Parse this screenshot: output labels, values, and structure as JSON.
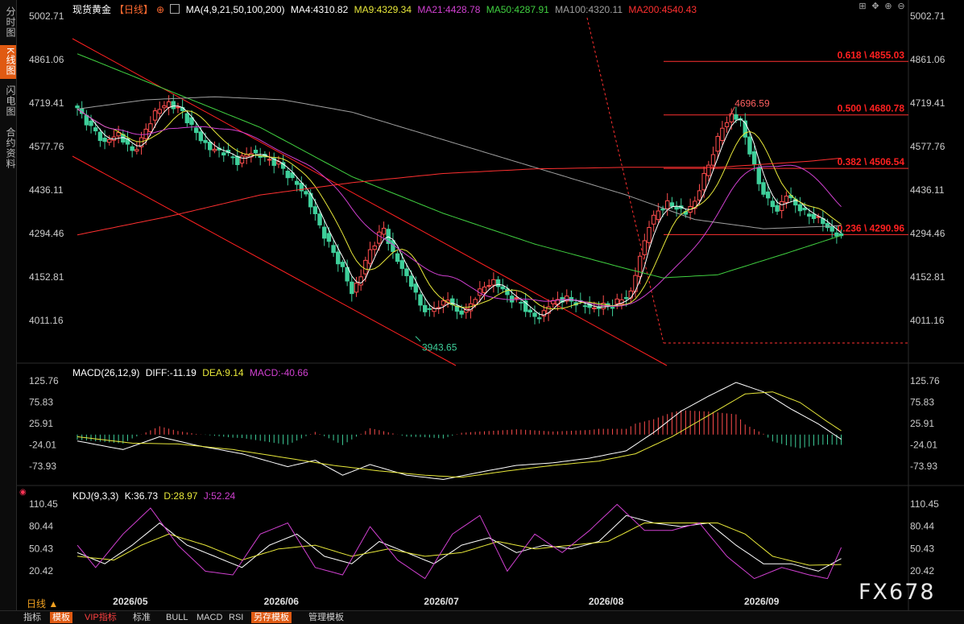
{
  "sidebar": {
    "tabs": [
      {
        "label": "分时图",
        "active": false
      },
      {
        "label": "K线图",
        "active": true
      },
      {
        "label": "闪电图",
        "active": false
      },
      {
        "label": "合约资料",
        "active": false
      }
    ]
  },
  "header": {
    "symbol": "现货黄金",
    "period_tag": "【日线】",
    "add_icon": "⊕",
    "ma_icon": "grid-icon",
    "ma_params": "MA(4,9,21,50,100,200)",
    "ma4": "MA4:4310.82",
    "ma9": "MA9:4329.34",
    "ma21": "MA21:4428.78",
    "ma50": "MA50:4287.91",
    "ma100": "MA100:4320.11",
    "ma200": "MA200:4540.43"
  },
  "macd_legend": {
    "name": "MACD(26,12,9)",
    "diff": "DIFF:-11.19",
    "dea": "DEA:9.14",
    "macd": "MACD:-40.66"
  },
  "kdj_legend": {
    "name": "KDJ(9,3,3)",
    "k": "K:36.73",
    "d": "D:28.97",
    "j": "J:52.24"
  },
  "period_label": "日线 ▲",
  "watermark": "FX678",
  "toolbar": {
    "items": [
      "指标",
      "模板",
      "VIP指标",
      "标准",
      "BULL",
      "MACD",
      "RSI",
      "另存模板",
      "管理模板"
    ]
  },
  "colors": {
    "up": "#ff4d4d",
    "down": "#3ecf9a",
    "ma4": "#ffffff",
    "ma9": "#e8e83a",
    "ma21": "#d040d0",
    "ma50": "#40d040",
    "ma100": "#a0a0a0",
    "ma200": "#ff3030",
    "axis_text": "#cccccc",
    "fib": "#ff3030"
  },
  "chart_data": {
    "type": "candlestick",
    "price_axis": {
      "ticks": [
        "5002.71",
        "4861.06",
        "4719.41",
        "4577.76",
        "4436.11",
        "4294.46",
        "4152.81",
        "4011.16"
      ],
      "range": [
        3950,
        5002.71
      ]
    },
    "macd_axis": {
      "ticks": [
        "125.76",
        "75.83",
        "25.91",
        "-24.01",
        "-73.93"
      ]
    },
    "kdj_axis": {
      "ticks": [
        "110.45",
        "80.44",
        "50.43",
        "20.42"
      ]
    },
    "x_labels": [
      "2026/05",
      "2026/06",
      "2026/07",
      "2026/08",
      "2026/09"
    ],
    "annotations": {
      "high": "4696.59",
      "low": "3943.65"
    },
    "fib_levels": [
      {
        "label": "0.618 \\ 4855.03",
        "value": 4855.03
      },
      {
        "label": "0.500 \\ 4680.78",
        "value": 4680.78
      },
      {
        "label": "0.382 \\ 4506.54",
        "value": 4506.54
      },
      {
        "label": "0.236 \\ 4290.96",
        "value": 4290.96
      }
    ],
    "close_anchors": [
      [
        0,
        4700
      ],
      [
        3,
        4640
      ],
      [
        6,
        4590
      ],
      [
        9,
        4620
      ],
      [
        12,
        4560
      ],
      [
        14,
        4600
      ],
      [
        17,
        4690
      ],
      [
        20,
        4720
      ],
      [
        23,
        4690
      ],
      [
        26,
        4620
      ],
      [
        29,
        4570
      ],
      [
        32,
        4560
      ],
      [
        35,
        4530
      ],
      [
        38,
        4560
      ],
      [
        41,
        4540
      ],
      [
        44,
        4520
      ],
      [
        47,
        4470
      ],
      [
        50,
        4420
      ],
      [
        53,
        4320
      ],
      [
        56,
        4230
      ],
      [
        58,
        4180
      ],
      [
        60,
        4100
      ],
      [
        62,
        4160
      ],
      [
        64,
        4240
      ],
      [
        66,
        4290
      ],
      [
        67,
        4310
      ],
      [
        69,
        4230
      ],
      [
        71,
        4180
      ],
      [
        73,
        4130
      ],
      [
        75,
        4060
      ],
      [
        77,
        4040
      ],
      [
        79,
        4060
      ],
      [
        81,
        4080
      ],
      [
        83,
        4040
      ],
      [
        85,
        4040
      ],
      [
        87,
        4090
      ],
      [
        89,
        4120
      ],
      [
        91,
        4140
      ],
      [
        93,
        4110
      ],
      [
        95,
        4080
      ],
      [
        97,
        4070
      ],
      [
        99,
        4030
      ],
      [
        101,
        4020
      ],
      [
        103,
        4060
      ],
      [
        105,
        4080
      ],
      [
        107,
        4080
      ],
      [
        109,
        4070
      ],
      [
        111,
        4060
      ],
      [
        113,
        4050
      ],
      [
        115,
        4060
      ],
      [
        117,
        4060
      ],
      [
        119,
        4080
      ],
      [
        121,
        4100
      ],
      [
        123,
        4220
      ],
      [
        125,
        4320
      ],
      [
        127,
        4370
      ],
      [
        129,
        4390
      ],
      [
        131,
        4380
      ],
      [
        133,
        4360
      ],
      [
        135,
        4400
      ],
      [
        137,
        4480
      ],
      [
        139,
        4560
      ],
      [
        141,
        4640
      ],
      [
        143,
        4680
      ],
      [
        145,
        4660
      ],
      [
        147,
        4560
      ],
      [
        149,
        4460
      ],
      [
        151,
        4400
      ],
      [
        153,
        4370
      ],
      [
        155,
        4420
      ],
      [
        157,
        4390
      ],
      [
        159,
        4360
      ],
      [
        161,
        4350
      ],
      [
        163,
        4330
      ],
      [
        165,
        4300
      ],
      [
        167,
        4280
      ]
    ],
    "ma50_anchors": [
      [
        0,
        4880
      ],
      [
        20,
        4760
      ],
      [
        40,
        4640
      ],
      [
        60,
        4480
      ],
      [
        80,
        4360
      ],
      [
        100,
        4260
      ],
      [
        120,
        4180
      ],
      [
        128,
        4150
      ],
      [
        140,
        4160
      ],
      [
        155,
        4230
      ],
      [
        167,
        4288
      ]
    ],
    "ma100_anchors": [
      [
        0,
        4700
      ],
      [
        15,
        4730
      ],
      [
        30,
        4740
      ],
      [
        45,
        4730
      ],
      [
        60,
        4690
      ],
      [
        80,
        4600
      ],
      [
        100,
        4510
      ],
      [
        120,
        4420
      ],
      [
        135,
        4340
      ],
      [
        150,
        4310
      ],
      [
        167,
        4320
      ]
    ],
    "ma200_anchors": [
      [
        0,
        4290
      ],
      [
        20,
        4350
      ],
      [
        40,
        4420
      ],
      [
        60,
        4460
      ],
      [
        80,
        4490
      ],
      [
        100,
        4505
      ],
      [
        120,
        4510
      ],
      [
        140,
        4510
      ],
      [
        160,
        4530
      ],
      [
        167,
        4540
      ]
    ],
    "macd_anchors": [
      [
        0,
        -15
      ],
      [
        10,
        -35
      ],
      [
        18,
        -5
      ],
      [
        26,
        -25
      ],
      [
        36,
        -45
      ],
      [
        46,
        -75
      ],
      [
        52,
        -60
      ],
      [
        58,
        -95
      ],
      [
        64,
        -70
      ],
      [
        72,
        -95
      ],
      [
        80,
        -105
      ],
      [
        88,
        -88
      ],
      [
        96,
        -72
      ],
      [
        104,
        -66
      ],
      [
        112,
        -55
      ],
      [
        120,
        -38
      ],
      [
        126,
        5
      ],
      [
        132,
        55
      ],
      [
        138,
        90
      ],
      [
        144,
        122
      ],
      [
        150,
        100
      ],
      [
        156,
        60
      ],
      [
        162,
        25
      ],
      [
        167,
        -11
      ]
    ],
    "dea_anchors": [
      [
        0,
        -5
      ],
      [
        12,
        -20
      ],
      [
        22,
        -22
      ],
      [
        34,
        -35
      ],
      [
        46,
        -55
      ],
      [
        56,
        -72
      ],
      [
        66,
        -85
      ],
      [
        76,
        -95
      ],
      [
        84,
        -100
      ],
      [
        94,
        -85
      ],
      [
        104,
        -72
      ],
      [
        114,
        -62
      ],
      [
        122,
        -45
      ],
      [
        130,
        -5
      ],
      [
        138,
        45
      ],
      [
        146,
        95
      ],
      [
        152,
        100
      ],
      [
        158,
        75
      ],
      [
        164,
        30
      ],
      [
        167,
        9
      ]
    ],
    "kdj_k_anchors": [
      [
        0,
        45
      ],
      [
        6,
        30
      ],
      [
        12,
        55
      ],
      [
        18,
        85
      ],
      [
        24,
        55
      ],
      [
        30,
        40
      ],
      [
        36,
        25
      ],
      [
        42,
        55
      ],
      [
        48,
        70
      ],
      [
        54,
        40
      ],
      [
        60,
        30
      ],
      [
        66,
        60
      ],
      [
        72,
        45
      ],
      [
        78,
        30
      ],
      [
        84,
        55
      ],
      [
        90,
        65
      ],
      [
        96,
        45
      ],
      [
        102,
        55
      ],
      [
        108,
        50
      ],
      [
        114,
        60
      ],
      [
        120,
        95
      ],
      [
        126,
        85
      ],
      [
        132,
        80
      ],
      [
        138,
        85
      ],
      [
        144,
        55
      ],
      [
        150,
        30
      ],
      [
        156,
        30
      ],
      [
        162,
        20
      ],
      [
        167,
        37
      ]
    ],
    "kdj_d_anchors": [
      [
        0,
        40
      ],
      [
        8,
        35
      ],
      [
        14,
        55
      ],
      [
        20,
        70
      ],
      [
        28,
        55
      ],
      [
        36,
        35
      ],
      [
        44,
        50
      ],
      [
        52,
        55
      ],
      [
        60,
        40
      ],
      [
        68,
        50
      ],
      [
        76,
        40
      ],
      [
        84,
        45
      ],
      [
        92,
        60
      ],
      [
        100,
        50
      ],
      [
        108,
        55
      ],
      [
        116,
        60
      ],
      [
        124,
        85
      ],
      [
        132,
        85
      ],
      [
        140,
        85
      ],
      [
        146,
        70
      ],
      [
        152,
        40
      ],
      [
        160,
        28
      ],
      [
        167,
        29
      ]
    ],
    "kdj_j_anchors": [
      [
        0,
        55
      ],
      [
        4,
        25
      ],
      [
        10,
        70
      ],
      [
        16,
        105
      ],
      [
        22,
        55
      ],
      [
        28,
        20
      ],
      [
        34,
        15
      ],
      [
        40,
        70
      ],
      [
        46,
        85
      ],
      [
        52,
        25
      ],
      [
        58,
        15
      ],
      [
        64,
        80
      ],
      [
        70,
        35
      ],
      [
        76,
        10
      ],
      [
        82,
        70
      ],
      [
        88,
        95
      ],
      [
        94,
        20
      ],
      [
        100,
        70
      ],
      [
        106,
        45
      ],
      [
        112,
        75
      ],
      [
        118,
        110
      ],
      [
        124,
        75
      ],
      [
        130,
        75
      ],
      [
        136,
        85
      ],
      [
        142,
        40
      ],
      [
        148,
        10
      ],
      [
        154,
        25
      ],
      [
        160,
        15
      ],
      [
        164,
        10
      ],
      [
        167,
        52
      ]
    ]
  }
}
